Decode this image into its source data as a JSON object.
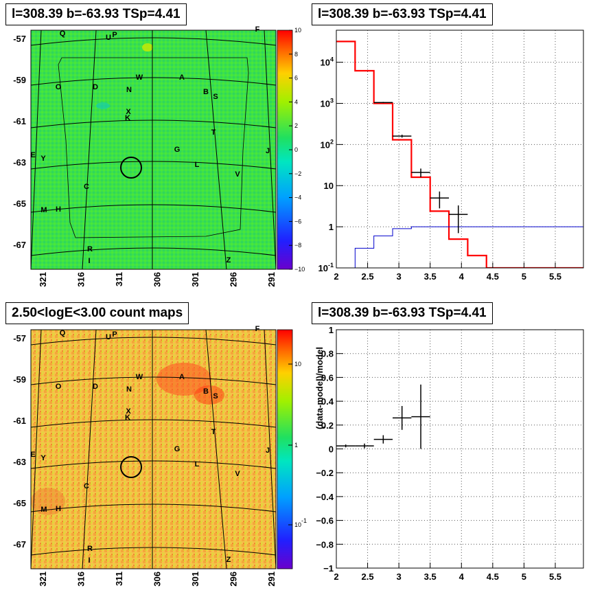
{
  "panels": {
    "tl_title": "l=308.39 b=-63.93 TSp=4.41",
    "tr_title": "l=308.39 b=-63.93 TSp=4.41",
    "bl_title": "2.50<logE<3.00 count maps",
    "br_title": "l=308.39 b=-63.93 TSp=4.41"
  },
  "colors": {
    "data": "#000000",
    "model_total": "#ff0000",
    "model_bg": "#0000cc",
    "grid": "#555555"
  },
  "chart_data": [
    {
      "type": "heatmap",
      "name": "TS map",
      "x_ticks": [
        "321",
        "316",
        "311",
        "306",
        "301",
        "296",
        "291"
      ],
      "y_ticks": [
        "-57",
        "-59",
        "-61",
        "-63",
        "-65",
        "-67"
      ],
      "colorbar_ticks": [
        "10",
        "8",
        "6",
        "4",
        "2",
        "0",
        "−2",
        "−4",
        "−6",
        "−8",
        "−10"
      ],
      "colorbar_range": [
        -10,
        10
      ],
      "sources": [
        "Q",
        "U",
        "P",
        "F",
        "O",
        "D",
        "W",
        "N",
        "A",
        "B",
        "S",
        "X",
        "K",
        "T",
        "G",
        "J",
        "E",
        "Y",
        "L",
        "V",
        "C",
        "M",
        "H",
        "R",
        "I",
        "Z"
      ]
    },
    {
      "type": "line",
      "name": "Counts spectrum",
      "x_ticks": [
        "2",
        "2.5",
        "3",
        "3.5",
        "4",
        "4.5",
        "5",
        "5.5"
      ],
      "xlim": [
        2,
        5.95
      ],
      "y_scale": "log",
      "y_ticks": [
        "10^-1",
        "1",
        "10",
        "10^2",
        "10^3",
        "10^4"
      ],
      "ylim": [
        0.1,
        60000
      ],
      "data_points": [
        {
          "x": 2.75,
          "xerr": 0.15,
          "y": 1050,
          "yerr": 35
        },
        {
          "x": 3.05,
          "xerr": 0.15,
          "y": 160,
          "yerr": 13
        },
        {
          "x": 3.35,
          "xerr": 0.15,
          "y": 21,
          "yerr": 5
        },
        {
          "x": 3.65,
          "xerr": 0.15,
          "y": 5,
          "yerr": 2.2
        },
        {
          "x": 3.95,
          "xerr": 0.15,
          "y": 2,
          "yerr": 1.3
        }
      ],
      "series": [
        {
          "name": "model_total",
          "edges": [
            2.0,
            2.3,
            2.6,
            2.9,
            3.2,
            3.5,
            3.8,
            4.1,
            4.4,
            4.7,
            5.0,
            5.3,
            5.6,
            5.95
          ],
          "values": [
            32000,
            6200,
            1000,
            130,
            16,
            2.4,
            0.5,
            0.2,
            0.1,
            0.1,
            0.1,
            0.1,
            0.1
          ]
        },
        {
          "name": "model_bg",
          "edges": [
            2.0,
            2.3,
            2.6,
            2.9,
            3.2,
            3.5,
            3.8,
            4.1,
            4.4,
            4.7,
            5.0,
            5.3,
            5.6,
            5.95
          ],
          "values": [
            0.05,
            0.3,
            0.6,
            0.9,
            1.0,
            1.0,
            1.0,
            1.0,
            1.0,
            1.0,
            1.0,
            1.0,
            1.0
          ]
        }
      ]
    },
    {
      "type": "heatmap",
      "name": "Count map",
      "x_ticks": [
        "321",
        "316",
        "311",
        "306",
        "301",
        "296",
        "291"
      ],
      "y_ticks": [
        "-57",
        "-59",
        "-61",
        "-63",
        "-65",
        "-67"
      ],
      "colorbar_ticks": [
        "10",
        "1",
        "10^-1"
      ],
      "colorbar_scale": "log",
      "sources": [
        "Q",
        "U",
        "P",
        "F",
        "O",
        "D",
        "W",
        "N",
        "A",
        "B",
        "S",
        "X",
        "K",
        "T",
        "G",
        "J",
        "E",
        "Y",
        "L",
        "V",
        "C",
        "M",
        "H",
        "R",
        "I",
        "Z"
      ]
    },
    {
      "type": "scatter",
      "name": "Residuals",
      "ylabel": "(data-model)/model",
      "x_ticks": [
        "2",
        "2.5",
        "3",
        "3.5",
        "4",
        "4.5",
        "5",
        "5.5"
      ],
      "xlim": [
        2,
        5.95
      ],
      "y_ticks": [
        "1",
        "0.8",
        "0.6",
        "0.4",
        "0.2",
        "0",
        "−0.2",
        "−0.4",
        "−0.6",
        "−0.8",
        "−1"
      ],
      "ylim": [
        -1,
        1
      ],
      "points": [
        {
          "x": 2.15,
          "xerr": 0.15,
          "y": 0.025,
          "yerr": 0.012
        },
        {
          "x": 2.45,
          "xerr": 0.15,
          "y": 0.025,
          "yerr": 0.02
        },
        {
          "x": 2.75,
          "xerr": 0.15,
          "y": 0.08,
          "yerr": 0.035
        },
        {
          "x": 3.05,
          "xerr": 0.15,
          "y": 0.26,
          "yerr": 0.1
        },
        {
          "x": 3.35,
          "xerr": 0.15,
          "y": 0.27,
          "yerr": 0.27
        }
      ]
    }
  ]
}
